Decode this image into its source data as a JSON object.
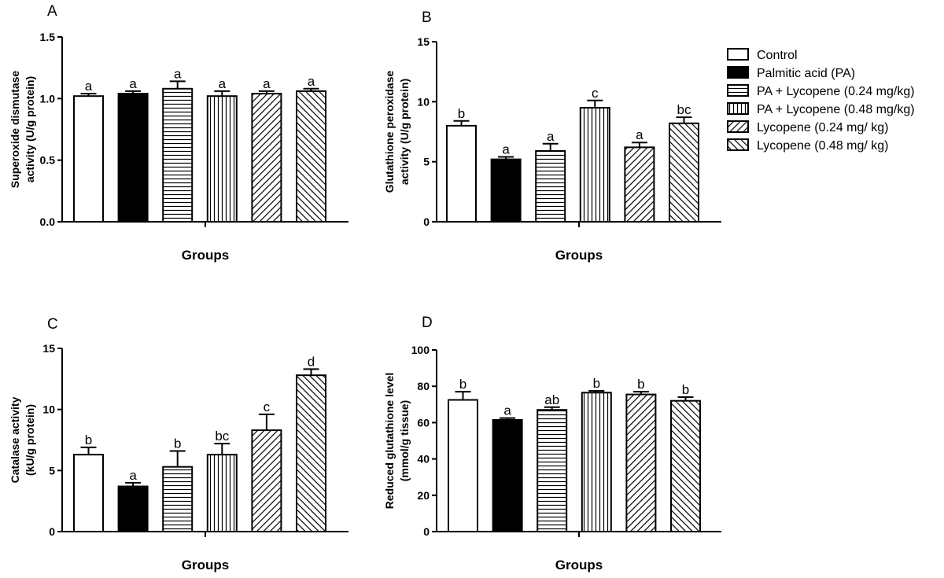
{
  "legend": {
    "items": [
      {
        "label": "Control",
        "pattern": "white"
      },
      {
        "label": "Palmitic acid (PA)",
        "pattern": "black"
      },
      {
        "label": "PA + Lycopene (0.24 mg/kg)",
        "pattern": "hlines"
      },
      {
        "label": "PA + Lycopene (0.48 mg/kg)",
        "pattern": "vlines"
      },
      {
        "label": "Lycopene (0.24 mg/ kg)",
        "pattern": "diag-up"
      },
      {
        "label": "Lycopene (0.48 mg/ kg)",
        "pattern": "diag-down"
      }
    ]
  },
  "chart_data": [
    {
      "panel": "A",
      "type": "bar",
      "xlabel": "Groups",
      "ylabel": [
        "Superoxide dismutase",
        "activity (U/g protein)"
      ],
      "ylim": [
        0,
        1.5
      ],
      "yticks": [
        0.0,
        0.5,
        1.0,
        1.5
      ],
      "ytick_labels": [
        "0.0",
        "0.5",
        "1.0",
        "1.5"
      ],
      "values": [
        1.02,
        1.04,
        1.08,
        1.02,
        1.04,
        1.06
      ],
      "errors": [
        0.02,
        0.02,
        0.06,
        0.04,
        0.02,
        0.02
      ],
      "letters": [
        "a",
        "a",
        "a",
        "a",
        "a",
        "a"
      ]
    },
    {
      "panel": "B",
      "type": "bar",
      "xlabel": "Groups",
      "ylabel": [
        "Glutathione peroxidase",
        "activity (U/g protein)"
      ],
      "ylim": [
        0,
        15
      ],
      "yticks": [
        0,
        5,
        10,
        15
      ],
      "ytick_labels": [
        "0",
        "5",
        "10",
        "15"
      ],
      "values": [
        8.0,
        5.2,
        5.9,
        9.5,
        6.2,
        8.2
      ],
      "errors": [
        0.4,
        0.2,
        0.6,
        0.6,
        0.4,
        0.5
      ],
      "letters": [
        "b",
        "a",
        "a",
        "c",
        "a",
        "bc"
      ]
    },
    {
      "panel": "C",
      "type": "bar",
      "xlabel": "Groups",
      "ylabel": [
        "Catalase activity",
        "(kU/g protein)"
      ],
      "ylim": [
        0,
        15
      ],
      "yticks": [
        0,
        5,
        10,
        15
      ],
      "ytick_labels": [
        "0",
        "5",
        "10",
        "15"
      ],
      "values": [
        6.3,
        3.7,
        5.3,
        6.3,
        8.3,
        12.8
      ],
      "errors": [
        0.6,
        0.3,
        1.3,
        0.9,
        1.3,
        0.5
      ],
      "letters": [
        "b",
        "a",
        "b",
        "bc",
        "c",
        "d"
      ]
    },
    {
      "panel": "D",
      "type": "bar",
      "xlabel": "Groups",
      "ylabel": [
        "Reduced glutathione level",
        "(mmol/g tissue)"
      ],
      "ylim": [
        0,
        100
      ],
      "yticks": [
        0,
        20,
        40,
        60,
        80,
        100
      ],
      "ytick_labels": [
        "0",
        "20",
        "40",
        "60",
        "80",
        "100"
      ],
      "values": [
        72.5,
        61.5,
        67.0,
        76.5,
        75.5,
        72.0
      ],
      "errors": [
        4.5,
        1.0,
        1.5,
        1.0,
        1.5,
        2.0
      ],
      "letters": [
        "b",
        "a",
        "ab",
        "b",
        "b",
        "b"
      ]
    }
  ]
}
